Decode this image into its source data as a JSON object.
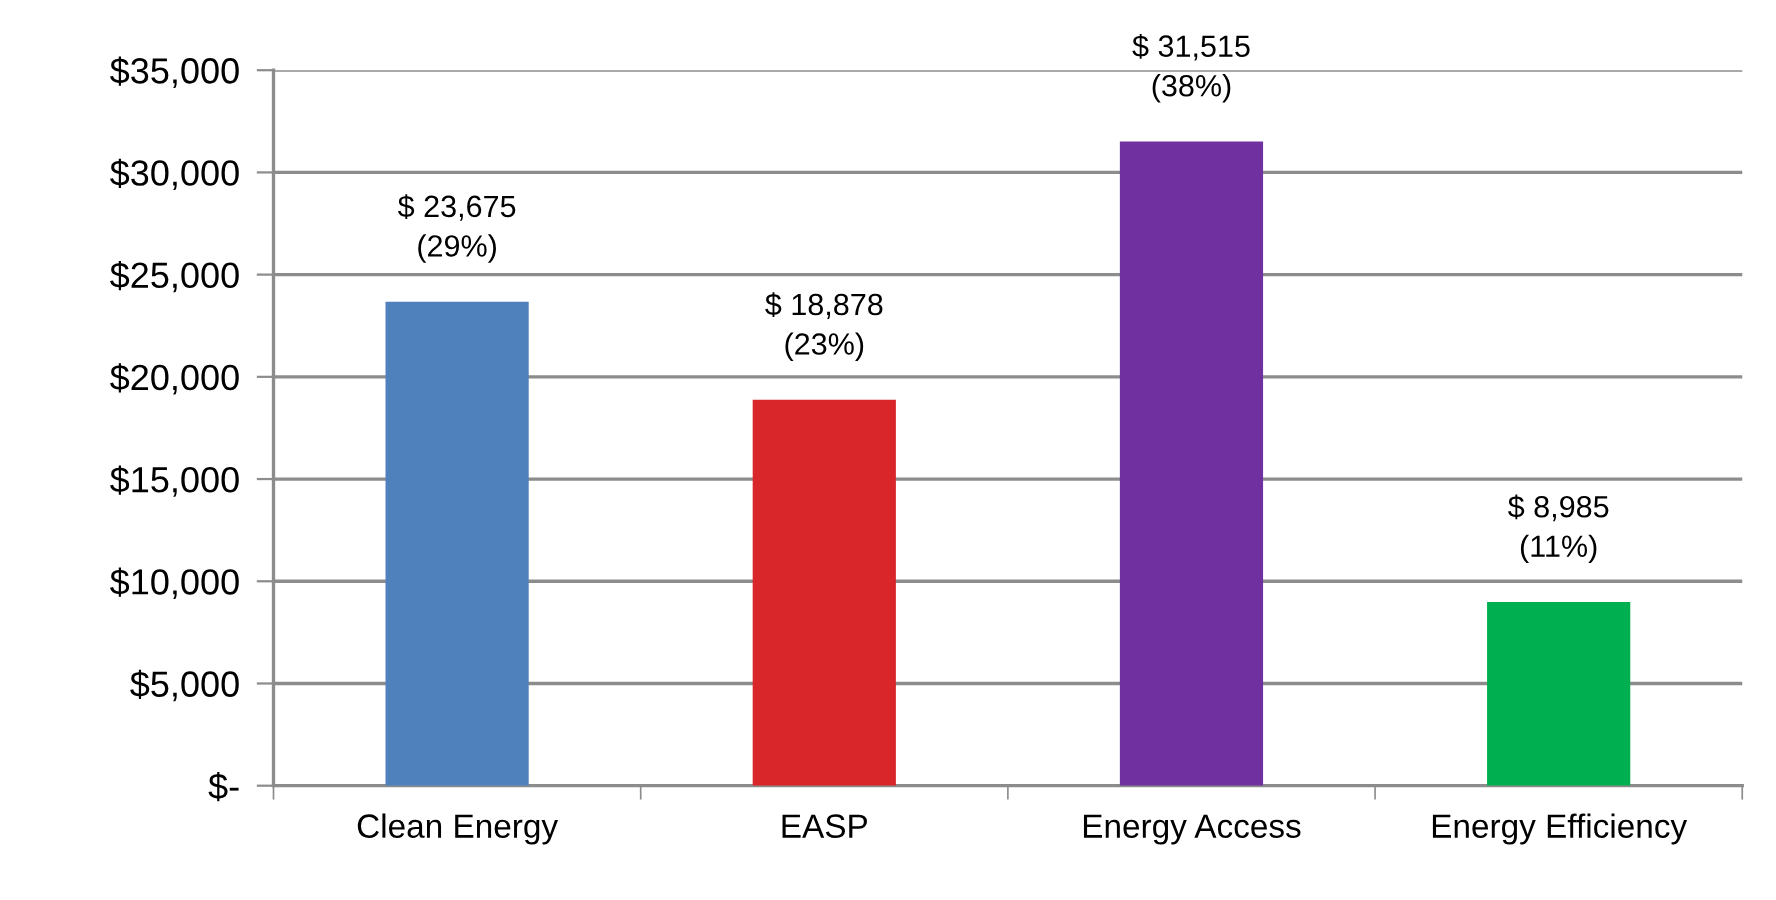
{
  "chart_data": {
    "type": "bar",
    "categories": [
      "Clean Energy",
      "EASP",
      "Energy Access",
      "Energy Efficiency"
    ],
    "values": [
      23675,
      18878,
      31515,
      8985
    ],
    "colors": [
      "#4f81bd",
      "#d9262b",
      "#7030a0",
      "#00b050"
    ],
    "value_labels": [
      "$ 23,675\n(29%)",
      "$ 18,878\n(23%)",
      "$ 31,515\n(38%)",
      "$ 8,985\n(11%)"
    ],
    "ylim": [
      0,
      35000
    ],
    "yticks": [
      {
        "value": 0,
        "label": "$-"
      },
      {
        "value": 5000,
        "label": "$5,000"
      },
      {
        "value": 10000,
        "label": "$10,000"
      },
      {
        "value": 15000,
        "label": "$15,000"
      },
      {
        "value": 20000,
        "label": "$20,000"
      },
      {
        "value": 25000,
        "label": "$25,000"
      },
      {
        "value": 30000,
        "label": "$30,000"
      },
      {
        "value": 35000,
        "label": "$35,000"
      }
    ],
    "grid": "y",
    "legend": false
  }
}
